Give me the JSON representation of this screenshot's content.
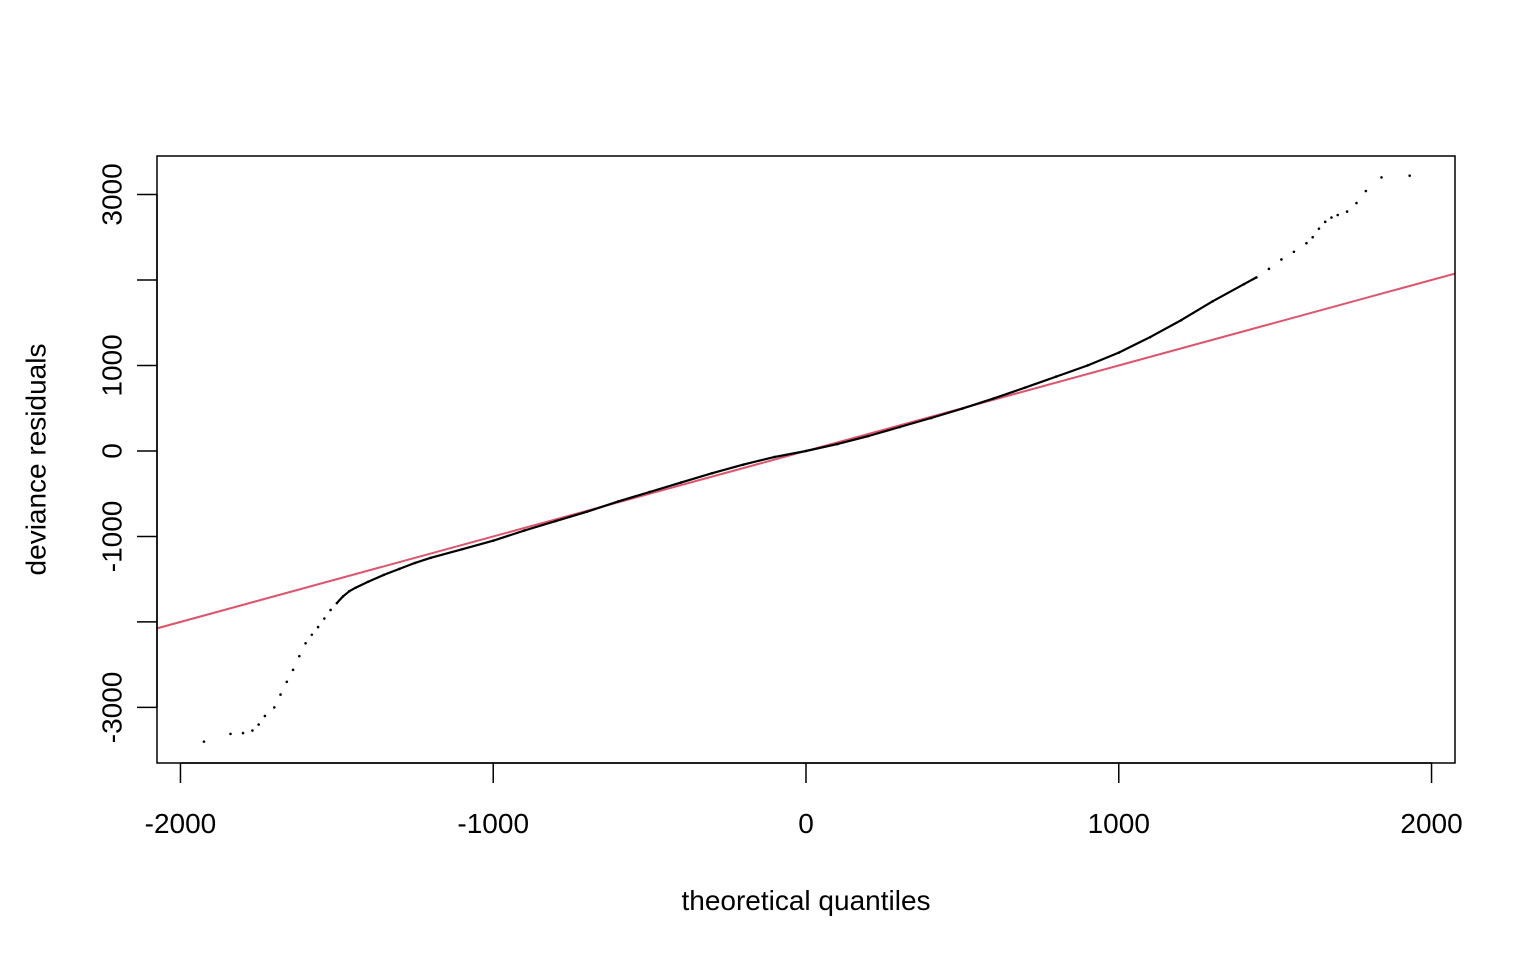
{
  "chart_data": {
    "type": "scatter",
    "title": "",
    "xlabel": "theoretical quantiles",
    "ylabel": "deviance residuals",
    "xlim": [
      -2075,
      2075
    ],
    "ylim": [
      -3650,
      3450
    ],
    "xticks": [
      -2000,
      -1000,
      0,
      1000,
      2000
    ],
    "xtick_labels": [
      "-2000",
      "-1000",
      "0",
      "1000",
      "2000"
    ],
    "yticks": [
      -3000,
      -2000,
      -1000,
      0,
      1000,
      2000,
      3000
    ],
    "ytick_labels": [
      "-3000",
      "",
      "-1000",
      "0",
      "1000",
      "",
      "3000"
    ],
    "grid": false,
    "legend": "none",
    "reference_line": {
      "name": "",
      "slope": 1,
      "intercept": 0,
      "color": "#DF536B"
    },
    "points_color": "#000000",
    "series": [
      {
        "name": "",
        "x": [
          -1925,
          -1840,
          -1800,
          -1770,
          -1750,
          -1730,
          -1700,
          -1680,
          -1660,
          -1640,
          -1620,
          -1600,
          -1580,
          -1560,
          -1540,
          -1520,
          -1500,
          -1480,
          -1460,
          -1440,
          -1400,
          -1350,
          -1300,
          -1250,
          -1200,
          -1100,
          -1000,
          -900,
          -800,
          -700,
          -600,
          -500,
          -400,
          -300,
          -200,
          -100,
          0,
          100,
          200,
          300,
          400,
          500,
          600,
          700,
          800,
          900,
          1000,
          1100,
          1200,
          1300,
          1400,
          1440,
          1480,
          1520,
          1560,
          1600,
          1620,
          1640,
          1660,
          1680,
          1700,
          1730,
          1760,
          1790,
          1840,
          1930
        ],
        "y": [
          -3400,
          -3310,
          -3300,
          -3270,
          -3200,
          -3100,
          -3000,
          -2850,
          -2700,
          -2560,
          -2400,
          -2250,
          -2150,
          -2060,
          -1960,
          -1860,
          -1780,
          -1700,
          -1640,
          -1600,
          -1530,
          -1450,
          -1380,
          -1310,
          -1250,
          -1150,
          -1050,
          -930,
          -820,
          -710,
          -590,
          -480,
          -370,
          -260,
          -160,
          -70,
          0,
          80,
          175,
          280,
          385,
          495,
          615,
          740,
          870,
          1000,
          1150,
          1330,
          1530,
          1750,
          1950,
          2030,
          2130,
          2240,
          2330,
          2430,
          2500,
          2600,
          2680,
          2730,
          2760,
          2800,
          2900,
          3040,
          3200,
          3220
        ]
      }
    ]
  }
}
